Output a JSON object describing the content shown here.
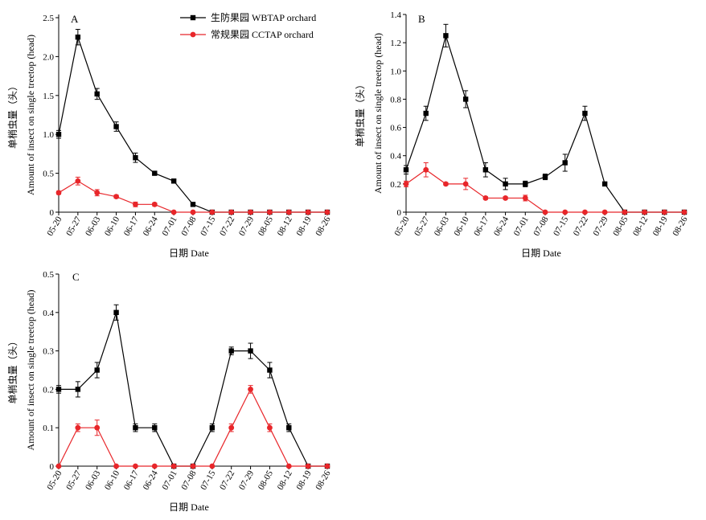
{
  "chart_data": [
    {
      "panel": "A",
      "type": "line",
      "categories": [
        "05-20",
        "05-27",
        "06-03",
        "06-10",
        "06-17",
        "06-24",
        "07-01",
        "07-08",
        "07-15",
        "07-22",
        "07-29",
        "08-05",
        "08-12",
        "08-19",
        "08-26"
      ],
      "series": [
        {
          "name": "生防果园 WBTAP orchard",
          "color": "#000000",
          "marker": "square",
          "values": [
            1.0,
            2.25,
            1.52,
            1.1,
            0.7,
            0.5,
            0.4,
            0.1,
            0,
            0,
            0,
            0,
            0,
            0,
            0
          ],
          "errors": [
            0.05,
            0.1,
            0.07,
            0.06,
            0.06,
            0.02,
            0.02,
            0.02,
            0,
            0,
            0,
            0,
            0,
            0,
            0
          ]
        },
        {
          "name": "常规果园 CCTAP orchard",
          "color": "#e8262a",
          "marker": "circle",
          "values": [
            0.25,
            0.4,
            0.25,
            0.2,
            0.1,
            0.1,
            0,
            0,
            0,
            0,
            0,
            0,
            0,
            0,
            0
          ],
          "errors": [
            0.02,
            0.05,
            0.04,
            0.02,
            0.03,
            0.02,
            0,
            0,
            0,
            0,
            0,
            0,
            0,
            0,
            0
          ]
        }
      ],
      "ylim": [
        0,
        2.5
      ],
      "yticks": [
        "0",
        "0.5",
        "1.0",
        "1.5",
        "2.0",
        "2.5"
      ],
      "xlabel": "日期 Date",
      "ylabel": "单梢虫量（头）Amount of insect on single treetop (head)",
      "legend": "top-right"
    },
    {
      "panel": "B",
      "type": "line",
      "categories": [
        "05-20",
        "05-27",
        "06-03",
        "06-10",
        "06-17",
        "06-24",
        "07-01",
        "07-08",
        "07-15",
        "07-22",
        "07-29",
        "08-05",
        "08-12",
        "08-19",
        "08-26"
      ],
      "series": [
        {
          "name": "生防果园 WBTAP orchard",
          "color": "#000000",
          "marker": "square",
          "values": [
            0.3,
            0.7,
            1.25,
            0.8,
            0.3,
            0.2,
            0.2,
            0.25,
            0.35,
            0.7,
            0.2,
            0,
            0,
            0,
            0
          ],
          "errors": [
            0.03,
            0.05,
            0.08,
            0.06,
            0.05,
            0.04,
            0.02,
            0.02,
            0.06,
            0.05,
            0.01,
            0,
            0,
            0,
            0
          ]
        },
        {
          "name": "常规果园 CCTAP orchard",
          "color": "#e8262a",
          "marker": "circle",
          "values": [
            0.2,
            0.3,
            0.2,
            0.2,
            0.1,
            0.1,
            0.1,
            0,
            0,
            0,
            0,
            0,
            0,
            0,
            0
          ],
          "errors": [
            0.02,
            0.05,
            0.01,
            0.04,
            0.01,
            0.01,
            0.02,
            0,
            0,
            0,
            0,
            0,
            0,
            0,
            0
          ]
        }
      ],
      "ylim": [
        0,
        1.4
      ],
      "yticks": [
        "0",
        "0.2",
        "0.4",
        "0.6",
        "0.8",
        "1.0",
        "1.2",
        "1.4"
      ],
      "xlabel": "日期 Date",
      "ylabel": "单梢虫量（头）Amount of insect on single treetop (head)"
    },
    {
      "panel": "C",
      "type": "line",
      "categories": [
        "05-20",
        "05-27",
        "06-03",
        "06-10",
        "06-17",
        "06-24",
        "07-01",
        "07-08",
        "07-15",
        "07-22",
        "07-29",
        "08-05",
        "08-12",
        "08-19",
        "08-26"
      ],
      "series": [
        {
          "name": "生防果园 WBTAP orchard",
          "color": "#000000",
          "marker": "square",
          "values": [
            0.2,
            0.2,
            0.25,
            0.4,
            0.1,
            0.1,
            0,
            0,
            0.1,
            0.3,
            0.3,
            0.25,
            0.1,
            0,
            0
          ],
          "errors": [
            0.01,
            0.02,
            0.02,
            0.02,
            0.01,
            0.01,
            0,
            0,
            0.01,
            0.01,
            0.02,
            0.02,
            0.01,
            0,
            0
          ]
        },
        {
          "name": "常规果园 CCTAP orchard",
          "color": "#e8262a",
          "marker": "circle",
          "values": [
            0,
            0.1,
            0.1,
            0,
            0,
            0,
            0,
            0,
            0,
            0.1,
            0.2,
            0.1,
            0,
            0,
            0
          ],
          "errors": [
            0,
            0.01,
            0.02,
            0,
            0,
            0,
            0,
            0,
            0,
            0.01,
            0.01,
            0.01,
            0,
            0,
            0
          ]
        }
      ],
      "ylim": [
        0,
        0.5
      ],
      "yticks": [
        "0",
        "0.1",
        "0.2",
        "0.3",
        "0.4",
        "0.5"
      ],
      "xlabel": "日期 Date",
      "ylabel": "单梢虫量（头）Amount of insect on single treetop (head)"
    }
  ],
  "labels": {
    "ylabel_cn": "单梢虫量（头）",
    "ylabel_en": "Amount of insect on single treetop (head)",
    "xlabel": "日期 Date",
    "legend_wbtap": "生防果园 WBTAP orchard",
    "legend_cctap": "常规果园 CCTAP orchard"
  }
}
